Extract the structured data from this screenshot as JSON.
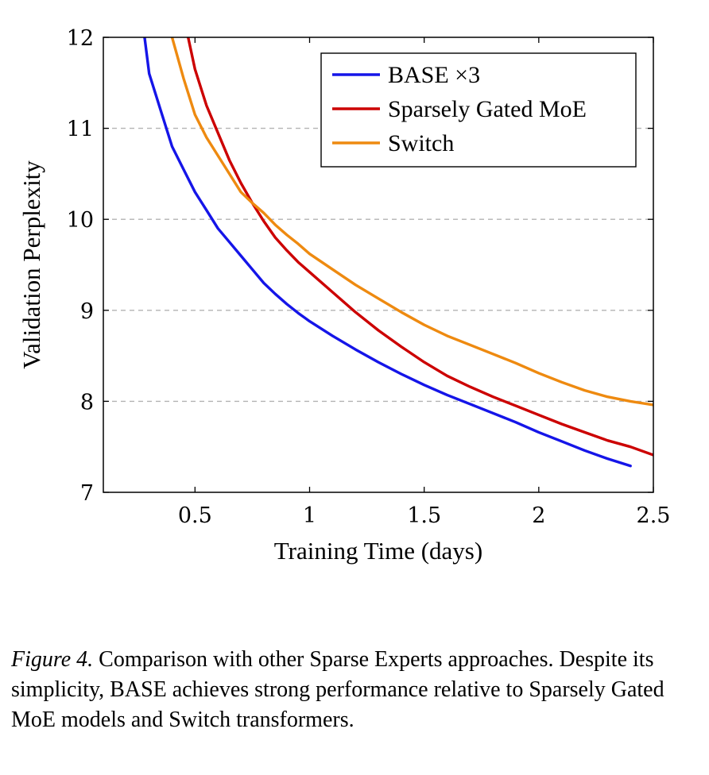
{
  "chart_data": {
    "type": "line",
    "xlabel": "Training Time (days)",
    "ylabel": "Validation Perplexity",
    "xlim": [
      0.1,
      2.5
    ],
    "ylim": [
      7,
      12
    ],
    "x_ticks": [
      0.5,
      1,
      1.5,
      2,
      2.5
    ],
    "x_tick_labels": [
      "0.5",
      "1",
      "1.5",
      "2",
      "2.5"
    ],
    "y_ticks": [
      7,
      8,
      9,
      10,
      11,
      12
    ],
    "y_tick_labels": [
      "7",
      "8",
      "9",
      "10",
      "11",
      "12"
    ],
    "grid": "horizontal dashed",
    "legend_position": "top-right",
    "series": [
      {
        "name": "BASE ×3",
        "color": "#1515e8",
        "x": [
          0.28,
          0.3,
          0.35,
          0.4,
          0.45,
          0.5,
          0.55,
          0.6,
          0.65,
          0.7,
          0.75,
          0.8,
          0.85,
          0.9,
          0.95,
          1.0,
          1.1,
          1.2,
          1.3,
          1.4,
          1.5,
          1.6,
          1.7,
          1.8,
          1.9,
          2.0,
          2.1,
          2.2,
          2.3,
          2.4
        ],
        "y": [
          12.0,
          11.6,
          11.2,
          10.8,
          10.55,
          10.3,
          10.1,
          9.9,
          9.75,
          9.6,
          9.45,
          9.3,
          9.18,
          9.07,
          8.97,
          8.88,
          8.72,
          8.57,
          8.43,
          8.3,
          8.18,
          8.07,
          7.97,
          7.87,
          7.77,
          7.66,
          7.56,
          7.46,
          7.37,
          7.29
        ]
      },
      {
        "name": "Sparsely Gated MoE",
        "color": "#cc0000",
        "x": [
          0.47,
          0.5,
          0.55,
          0.6,
          0.65,
          0.7,
          0.75,
          0.8,
          0.85,
          0.9,
          0.95,
          1.0,
          1.1,
          1.2,
          1.3,
          1.4,
          1.5,
          1.6,
          1.7,
          1.8,
          1.9,
          2.0,
          2.1,
          2.2,
          2.3,
          2.4,
          2.5
        ],
        "y": [
          12.0,
          11.65,
          11.25,
          10.95,
          10.65,
          10.4,
          10.18,
          9.98,
          9.8,
          9.66,
          9.53,
          9.42,
          9.2,
          8.98,
          8.78,
          8.6,
          8.43,
          8.28,
          8.16,
          8.05,
          7.95,
          7.85,
          7.75,
          7.66,
          7.57,
          7.5,
          7.41
        ]
      },
      {
        "name": "Switch",
        "color": "#ee8a10",
        "x": [
          0.4,
          0.45,
          0.5,
          0.55,
          0.6,
          0.65,
          0.7,
          0.75,
          0.8,
          0.85,
          0.9,
          0.95,
          1.0,
          1.1,
          1.2,
          1.3,
          1.4,
          1.5,
          1.6,
          1.7,
          1.8,
          1.9,
          2.0,
          2.1,
          2.2,
          2.3,
          2.4,
          2.5
        ],
        "y": [
          12.0,
          11.55,
          11.15,
          10.9,
          10.7,
          10.5,
          10.3,
          10.18,
          10.07,
          9.94,
          9.83,
          9.73,
          9.62,
          9.45,
          9.28,
          9.13,
          8.98,
          8.84,
          8.72,
          8.62,
          8.52,
          8.42,
          8.31,
          8.21,
          8.12,
          8.05,
          8.0,
          7.96
        ]
      }
    ]
  },
  "caption": {
    "label": "Figure 4.",
    "text": "Comparison with other Sparse Experts approaches. Despite its simplicity, BASE achieves strong performance relative to Sparsely Gated MoE models and Switch transformers."
  }
}
